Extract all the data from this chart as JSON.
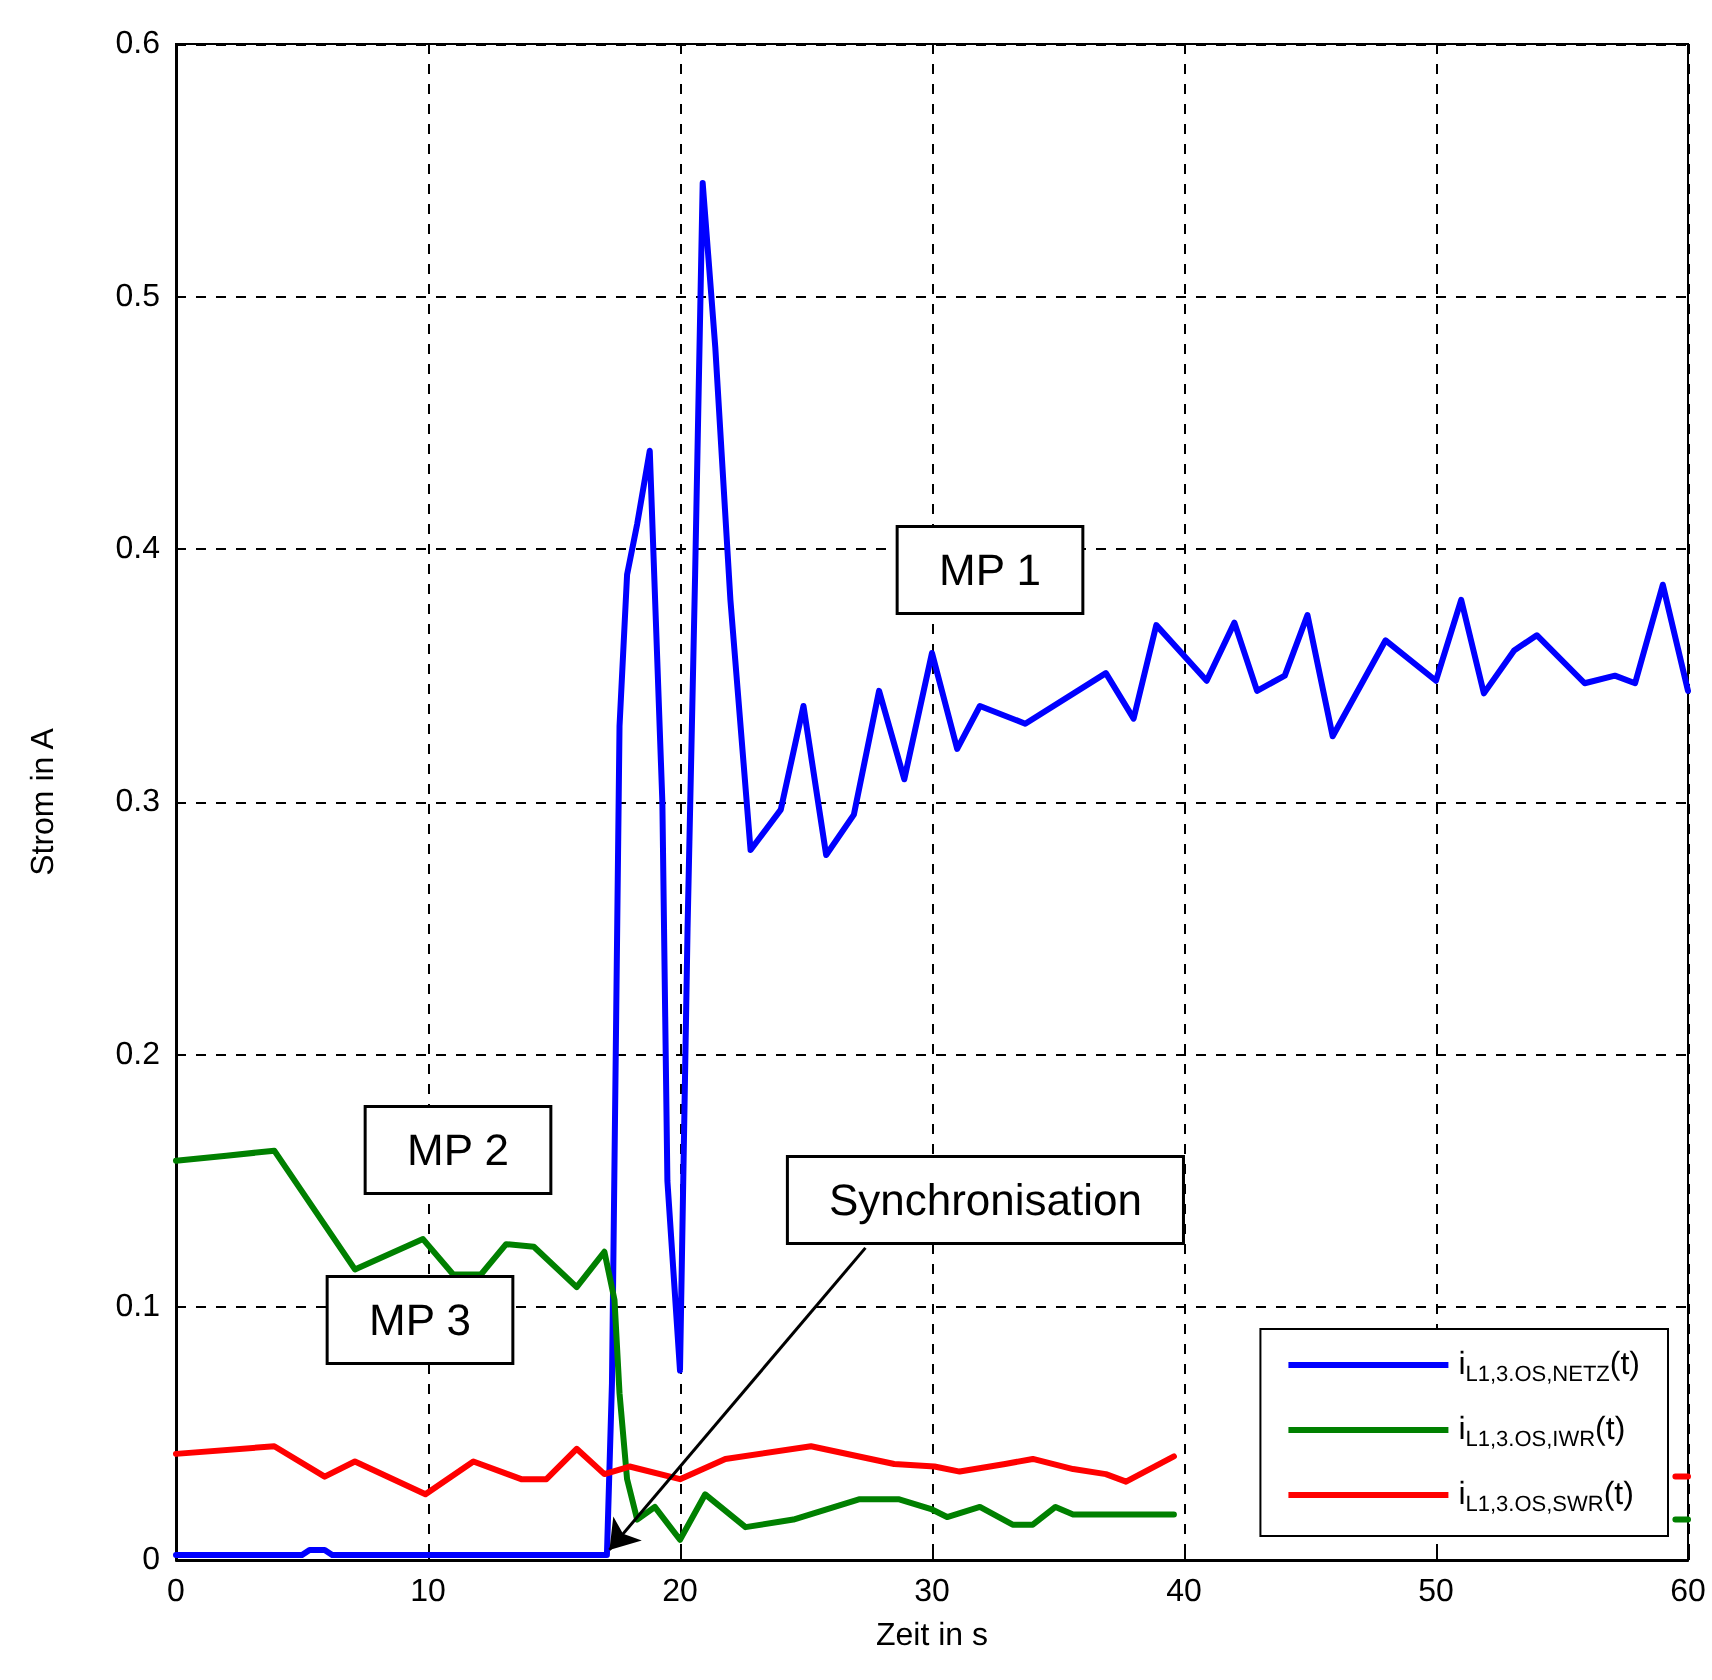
{
  "chart_data": {
    "type": "line",
    "xlabel": "Zeit in s",
    "ylabel": "Strom in A",
    "xlim": [
      0,
      60
    ],
    "xticks": [
      0,
      10,
      20,
      30,
      40,
      50,
      60
    ],
    "ylim": [
      0,
      0.6
    ],
    "yticks": [
      0,
      0.1,
      0.2,
      0.3,
      0.4,
      0.5,
      0.6
    ],
    "grid": true,
    "legend": "bottom right",
    "marker": "none",
    "line_style": "solid",
    "annotations": [
      "MP 1",
      "MP 2",
      "MP 3",
      {
        "text": "Synchronisation",
        "x": 17.2,
        "y": 0.004
      }
    ],
    "series": [
      {
        "name": "i$_{L1,3.OS,NETZ}$(t)",
        "color": "#0000ff",
        "x": [
          0,
          5,
          5.3,
          5.9,
          6.2,
          17.1,
          17.3,
          17.6,
          17.9,
          18.3,
          18.8,
          19.3,
          19.5,
          20.0,
          20.3,
          20.6,
          20.9,
          21.4,
          22.0,
          22.8,
          24.0,
          24.9,
          25.8,
          26.9,
          27.9,
          28.9,
          30.0,
          31.0,
          31.9,
          33.7,
          36.9,
          38.0,
          38.9,
          40.9,
          42.0,
          42.9,
          44.0,
          44.9,
          45.9,
          48.0,
          50.0,
          51.0,
          51.9,
          53.1,
          54.0,
          55.9,
          57.1,
          57.9,
          59.0,
          60
        ],
        "values": [
          0.002,
          0.002,
          0.004,
          0.004,
          0.002,
          0.002,
          0.07,
          0.33,
          0.39,
          0.41,
          0.439,
          0.3,
          0.15,
          0.075,
          0.25,
          0.39,
          0.545,
          0.48,
          0.38,
          0.281,
          0.297,
          0.338,
          0.279,
          0.295,
          0.344,
          0.309,
          0.359,
          0.321,
          0.338,
          0.331,
          0.351,
          0.333,
          0.37,
          0.348,
          0.371,
          0.344,
          0.35,
          0.374,
          0.326,
          0.364,
          0.348,
          0.38,
          0.343,
          0.36,
          0.366,
          0.347,
          0.35,
          0.347,
          0.386,
          0.344
        ]
      },
      {
        "name": "i$_{L1,3.OS,IWR}$(t)",
        "color": "#008000",
        "x": [
          0,
          2.0,
          3.9,
          7.1,
          9.8,
          11.0,
          12.1,
          13.1,
          14.2,
          15.9,
          17.0,
          17.4,
          17.6,
          17.9,
          18.3,
          19.0,
          20.0,
          21.0,
          22.6,
          24.5,
          27.1,
          28.7,
          30.0,
          30.6,
          31.9,
          33.2,
          34.0,
          34.9,
          35.6,
          39.6,
          40,
          59.5,
          60
        ],
        "values": [
          0.158,
          0.16,
          0.162,
          0.115,
          0.127,
          0.113,
          0.113,
          0.125,
          0.124,
          0.108,
          0.122,
          0.103,
          0.066,
          0.032,
          0.016,
          0.021,
          0.008,
          0.026,
          0.013,
          0.016,
          0.024,
          0.024,
          0.02,
          0.017,
          0.021,
          0.014,
          0.014,
          0.021,
          0.018,
          0.018,
          null,
          0.016,
          0.016
        ]
      },
      {
        "name": "i$_{L1,3.OS,SWR}$(t)",
        "color": "#ff0000",
        "x": [
          0,
          3.9,
          5.9,
          7.1,
          9.9,
          11.8,
          13.7,
          14.7,
          15.9,
          17.0,
          18.0,
          20.0,
          21.8,
          25.2,
          28.5,
          30.1,
          31.1,
          32.9,
          34.0,
          35.6,
          36.9,
          37.7,
          39.6,
          40,
          59.5,
          60
        ],
        "values": [
          0.042,
          0.045,
          0.033,
          0.039,
          0.026,
          0.039,
          0.032,
          0.032,
          0.044,
          0.034,
          0.037,
          0.032,
          0.04,
          0.045,
          0.038,
          0.037,
          0.035,
          0.038,
          0.04,
          0.036,
          0.034,
          0.031,
          0.041,
          null,
          0.033,
          0.033
        ]
      }
    ]
  }
}
